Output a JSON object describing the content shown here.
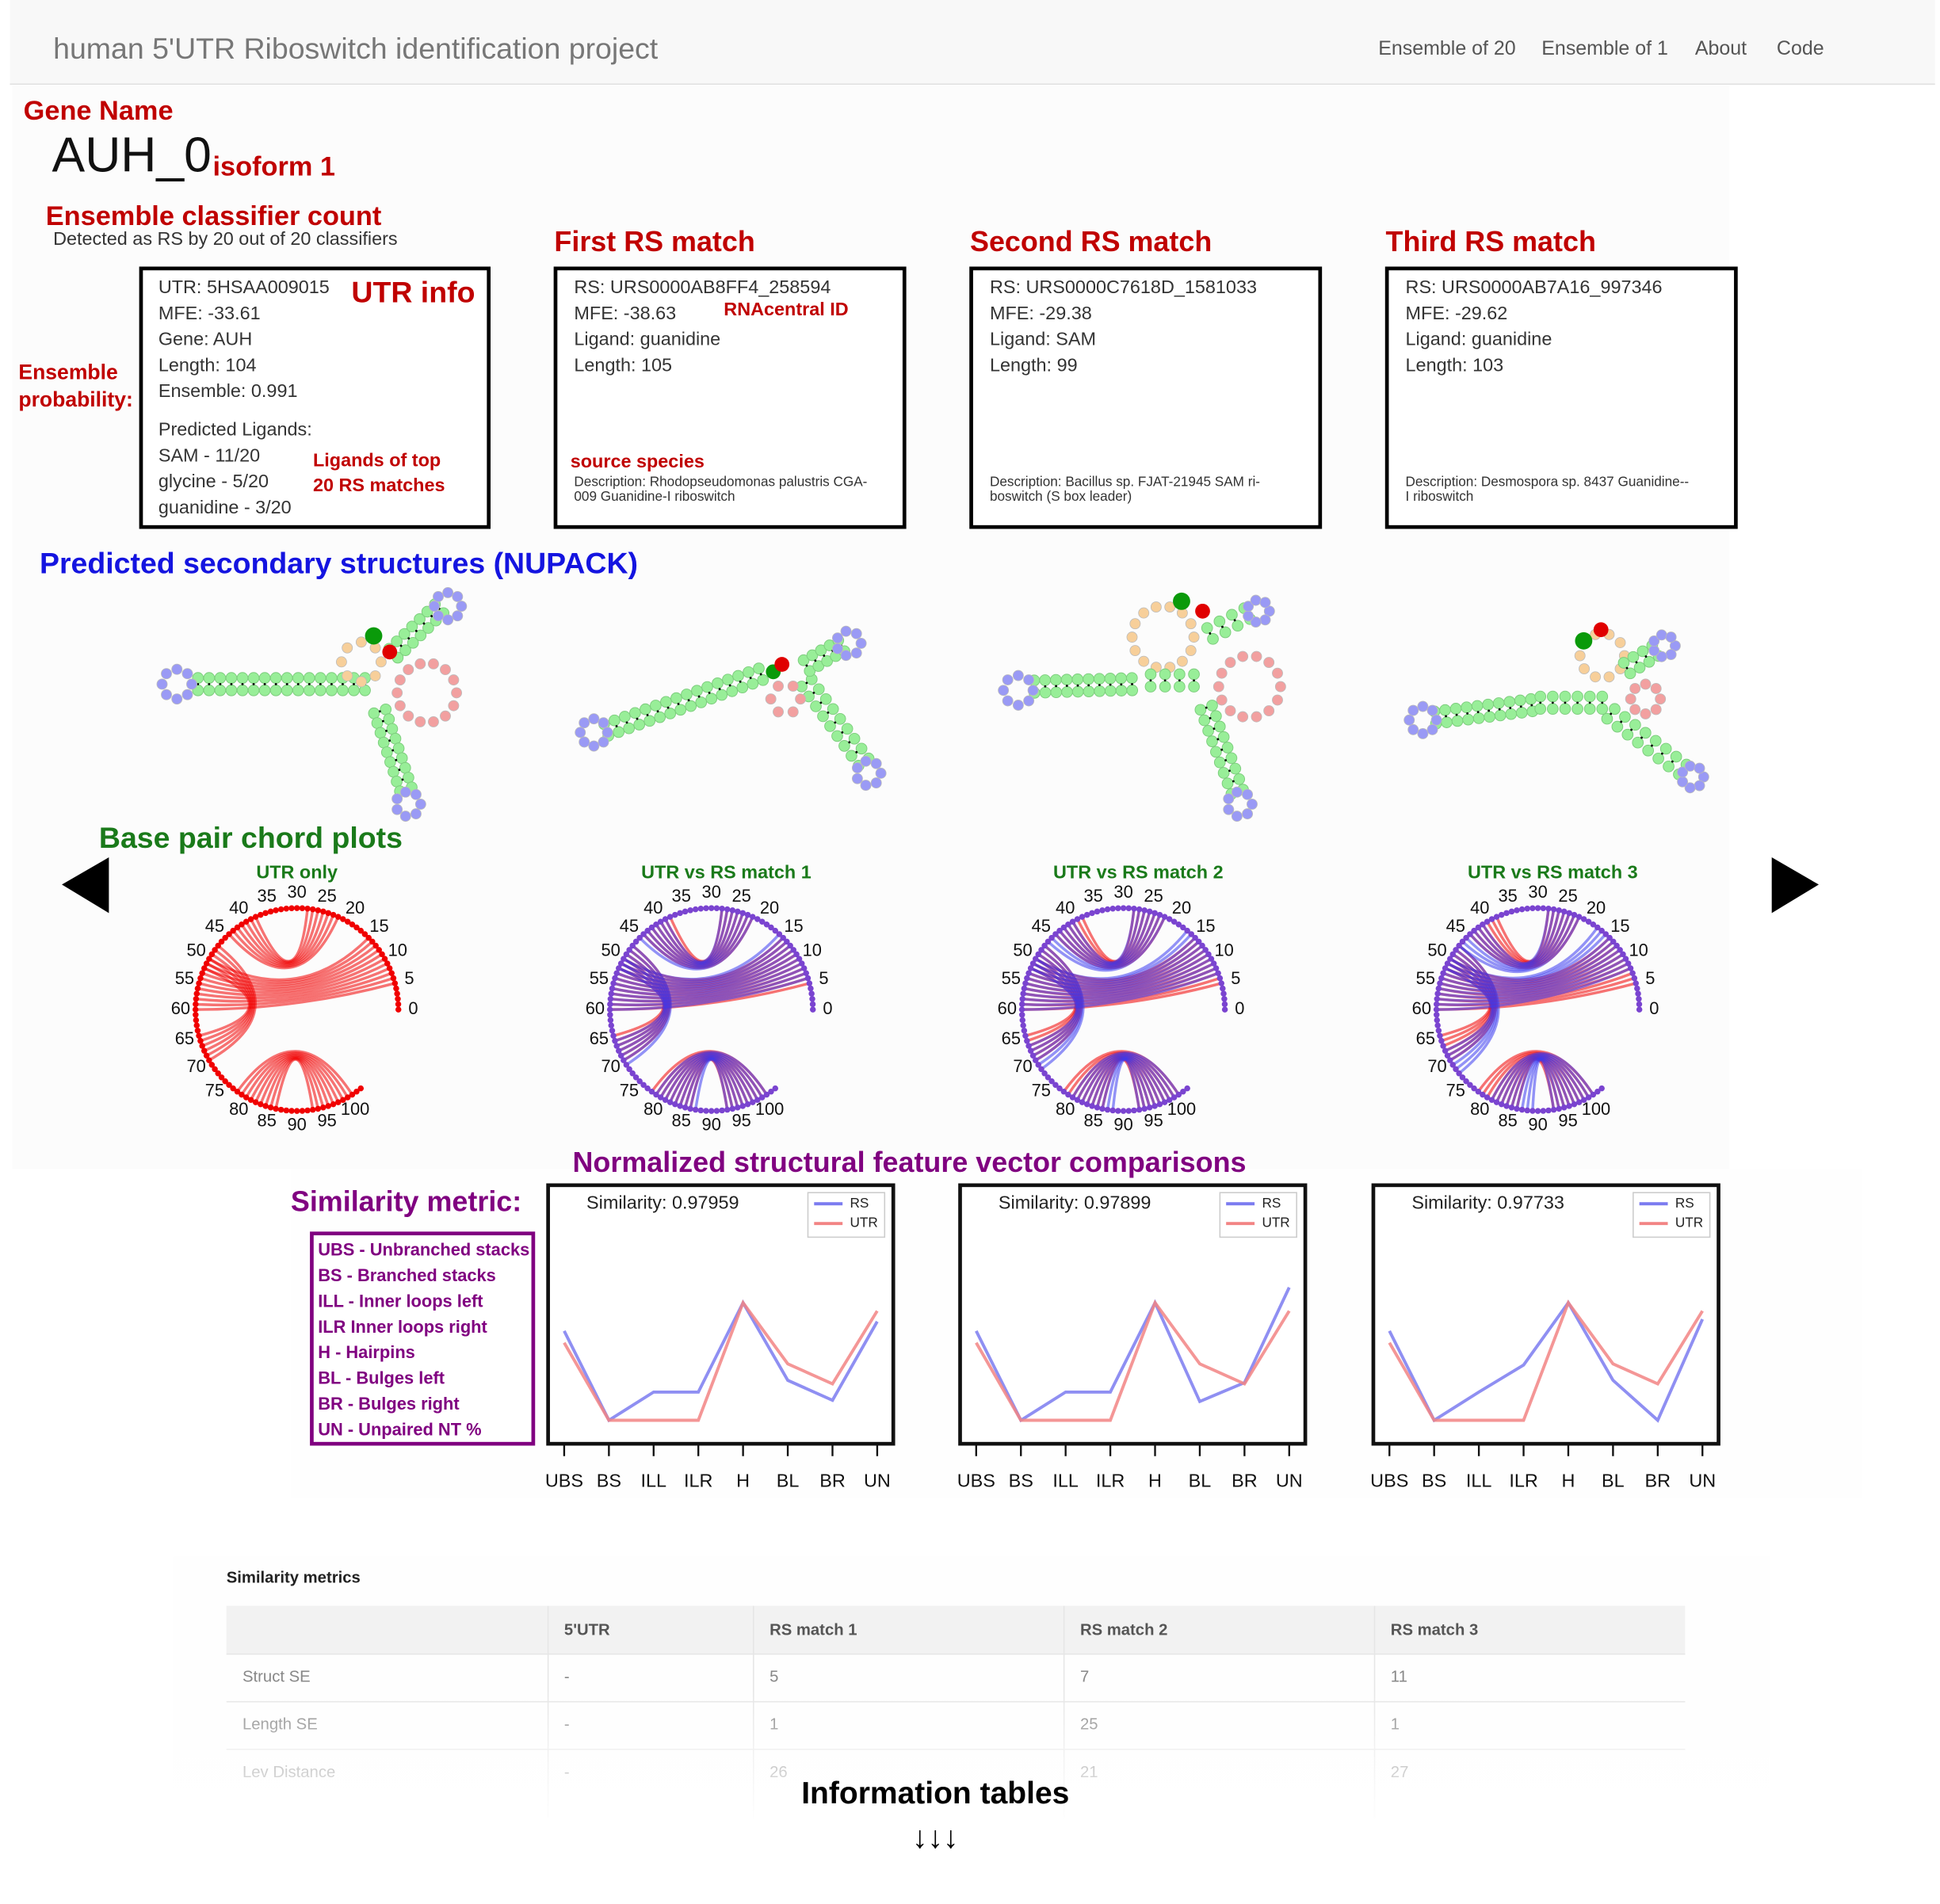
{
  "nav": {
    "brand": "human 5'UTR Riboswitch identification project",
    "links": [
      "Ensemble of 20",
      "Ensemble of 1",
      "About",
      "Code"
    ]
  },
  "gene": {
    "label": "Gene Name",
    "name": "AUH_0",
    "isoform": "isoform 1",
    "count_label": "Ensemble classifier count",
    "detected": "Detected as RS by 20 out of 20 classifiers"
  },
  "utr_info": {
    "title": "UTR info",
    "lines": [
      "UTR: 5HSAA009015",
      "MFE: -33.61",
      "Gene: AUH",
      "Length: 104",
      "Ensemble: 0.991"
    ],
    "ligands_heading": "Predicted Ligands:",
    "ligands": [
      "SAM - 11/20",
      "glycine - 5/20",
      "guanidine - 3/20"
    ],
    "probability_note": [
      "Ensemble",
      "probability:"
    ],
    "ligand_note": [
      "Ligands of top",
      "20 RS matches"
    ]
  },
  "rs_matches": [
    {
      "heading": "First RS match",
      "lines": [
        "RS: URS0000AB8FF4_258594",
        "MFE: -38.63",
        "Ligand: guanidine",
        "Length: 105"
      ],
      "description": [
        "Description: Rhodopseudomonas palustris CGA-",
        "009 Guanidine-I riboswitch"
      ]
    },
    {
      "heading": "Second RS match",
      "lines": [
        "RS: URS0000C7618D_1581033",
        "MFE: -29.38",
        "Ligand: SAM",
        "Length: 99"
      ],
      "description": [
        "Description: Bacillus sp. FJAT-21945 SAM ri-",
        "boswitch (S box leader)"
      ]
    },
    {
      "heading": "Third RS match",
      "lines": [
        "RS: URS0000AB7A16_997346",
        "MFE: -29.62",
        "Ligand: guanidine",
        "Length: 103"
      ],
      "description": [
        "Description: Desmospora sp. 8437 Guanidine--",
        "I riboswitch"
      ]
    }
  ],
  "rs_notes": {
    "id": "RNAcentral ID",
    "species": "source species"
  },
  "structures": {
    "title": "Predicted secondary structures (NUPACK)"
  },
  "chords": {
    "title": "Base pair chord plots",
    "panels": [
      "UTR only",
      "UTR vs RS match 1",
      "UTR vs RS match 2",
      "UTR vs RS match 3"
    ],
    "ticks": [
      0,
      5,
      10,
      15,
      20,
      25,
      30,
      35,
      40,
      45,
      50,
      55,
      60,
      65,
      70,
      75,
      80,
      85,
      90,
      95,
      100
    ]
  },
  "features": {
    "title": "Normalized structural feature vector comparisons",
    "metric_label": "Similarity metric:",
    "metrics": [
      "UBS - Unbranched stacks",
      "BS - Branched stacks",
      "ILL - Inner loops left",
      "ILR Inner loops right",
      "H - Hairpins",
      "BL - Bulges left",
      "BR - Bulges right",
      "UN - Unpaired NT %"
    ]
  },
  "chart_data": [
    {
      "type": "line",
      "title": "Similarity: 0.97959",
      "categories": [
        "UBS",
        "BS",
        "ILL",
        "ILR",
        "H",
        "BL",
        "BR",
        "UN"
      ],
      "ylim": [
        -0.2,
        2.0
      ],
      "series": [
        {
          "name": "RS",
          "color": "#7b7bf0",
          "values": [
            0.76,
            0,
            0.24,
            0.24,
            1,
            0.34,
            0.17,
            0.84
          ]
        },
        {
          "name": "UTR",
          "color": "#f28484",
          "values": [
            0.66,
            0,
            0,
            0,
            1,
            0.48,
            0.31,
            0.93
          ]
        }
      ]
    },
    {
      "type": "line",
      "title": "Similarity: 0.97899",
      "categories": [
        "UBS",
        "BS",
        "ILL",
        "ILR",
        "H",
        "BL",
        "BR",
        "UN"
      ],
      "ylim": [
        -0.2,
        2.0
      ],
      "series": [
        {
          "name": "RS",
          "color": "#7b7bf0",
          "values": [
            0.76,
            0,
            0.24,
            0.24,
            1,
            0.16,
            0.32,
            1.13
          ]
        },
        {
          "name": "UTR",
          "color": "#f28484",
          "values": [
            0.66,
            0,
            0,
            0,
            1,
            0.48,
            0.31,
            0.93
          ]
        }
      ]
    },
    {
      "type": "line",
      "title": "Similarity: 0.97733",
      "categories": [
        "UBS",
        "BS",
        "ILL",
        "ILR",
        "H",
        "BL",
        "BR",
        "UN"
      ],
      "ylim": [
        -0.2,
        2.0
      ],
      "series": [
        {
          "name": "RS",
          "color": "#7b7bf0",
          "values": [
            0.76,
            0,
            0.24,
            0.47,
            1,
            0.34,
            0,
            0.86
          ]
        },
        {
          "name": "UTR",
          "color": "#f28484",
          "values": [
            0.66,
            0,
            0,
            0,
            1,
            0.48,
            0.31,
            0.93
          ]
        }
      ]
    }
  ],
  "table": {
    "title": "Similarity metrics",
    "columns": [
      "5'UTR",
      "RS match 1",
      "RS match 2",
      "RS match 3"
    ],
    "rows": [
      {
        "label": "Struct SE",
        "cells": [
          "-",
          5,
          7,
          11
        ]
      },
      {
        "label": "Length SE",
        "cells": [
          "-",
          1,
          25,
          1
        ]
      },
      {
        "label": "Lev Distance",
        "cells": [
          "-",
          26,
          21,
          27
        ]
      }
    ]
  },
  "footer": {
    "label": "Information tables",
    "arrows": "↓↓↓"
  }
}
